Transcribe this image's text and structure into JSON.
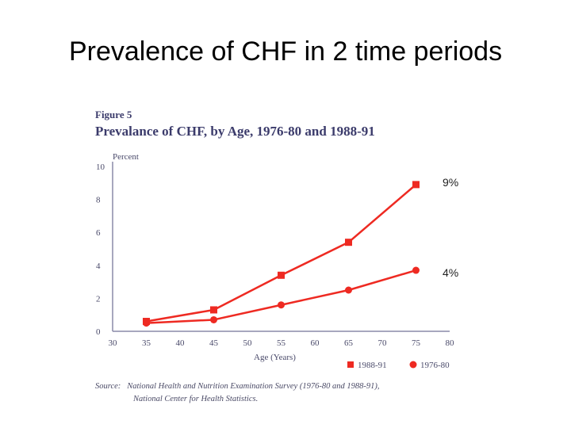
{
  "slide": {
    "title": "Prevalence of CHF in 2 time periods"
  },
  "figure": {
    "number": "Figure 5",
    "title": "Prevalance of CHF, by Age, 1976-80 and 1988-91",
    "source_label": "Source:",
    "source_line1": "National Health and Nutrition Examination Survey (1976-80 and 1988-91),",
    "source_line2": "National Center for Health Statistics."
  },
  "annotations": {
    "high": "9%",
    "low": "4%"
  },
  "colors": {
    "series": "#ee2a22",
    "axis": "#8a8aa8",
    "text": "#4a4a6a"
  },
  "chart_data": {
    "type": "line",
    "title": "Prevalance of CHF, by Age, 1976-80 and 1988-91",
    "xlabel": "Age (Years)",
    "ylabel": "Percent",
    "xlim": [
      30,
      80
    ],
    "ylim": [
      0,
      10
    ],
    "xticks": [
      30,
      35,
      40,
      45,
      50,
      55,
      60,
      65,
      70,
      75,
      80
    ],
    "yticks": [
      0,
      2,
      4,
      6,
      8,
      10
    ],
    "grid": false,
    "legend_position": "bottom-right",
    "series": [
      {
        "name": "1988-91",
        "marker": "square",
        "x": [
          35,
          45,
          55,
          65,
          75
        ],
        "y": [
          0.6,
          1.3,
          3.4,
          5.4,
          8.9
        ]
      },
      {
        "name": "1976-80",
        "marker": "circle",
        "x": [
          35,
          45,
          55,
          65,
          75
        ],
        "y": [
          0.5,
          0.7,
          1.6,
          2.5,
          3.7
        ]
      }
    ]
  }
}
